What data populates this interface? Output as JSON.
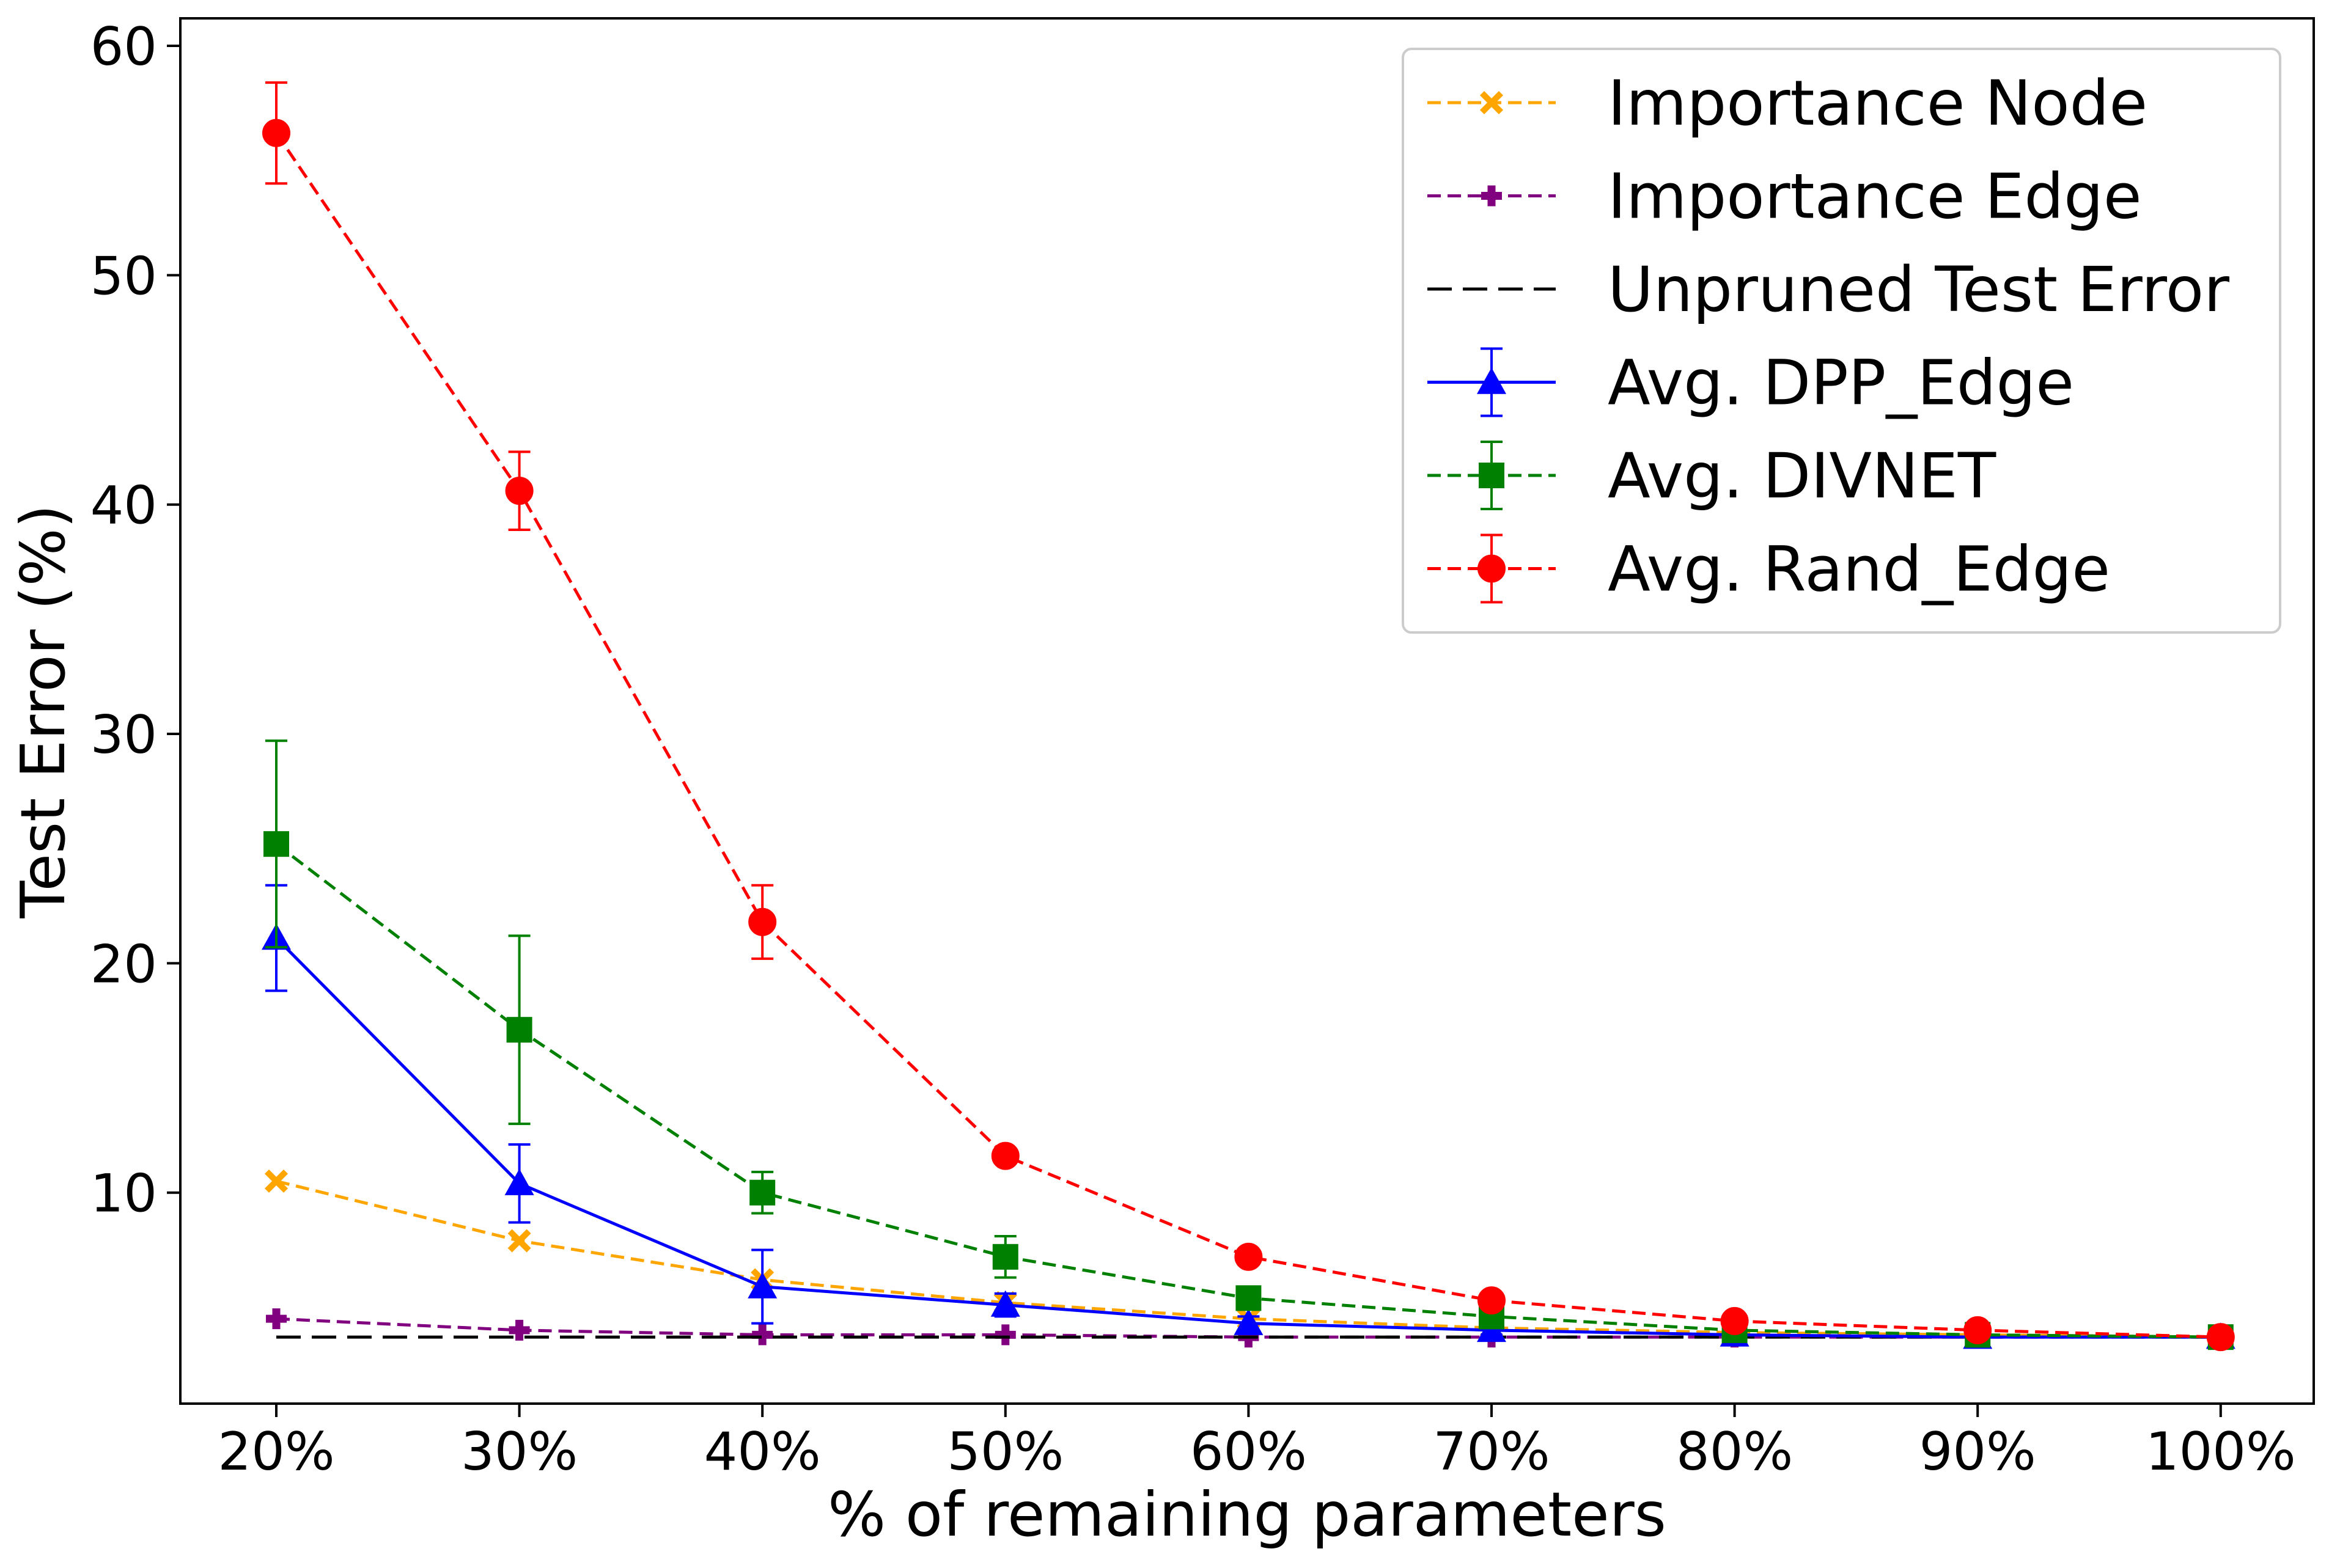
{
  "chart_data": {
    "type": "line",
    "title": "",
    "xlabel": "% of remaining parameters",
    "ylabel": "Test Error (%)",
    "categories": [
      "20%",
      "30%",
      "40%",
      "50%",
      "60%",
      "70%",
      "80%",
      "90%",
      "100%"
    ],
    "ylim": [
      0.8,
      61.2
    ],
    "y_ticks": [
      10,
      20,
      30,
      40,
      50,
      60
    ],
    "y_tick_labels": [
      "10",
      "20",
      "30",
      "40",
      "50",
      "60"
    ],
    "grid": false,
    "legend_position": "top-right",
    "series": [
      {
        "name": "Importance Node",
        "color": "#ffa500",
        "line_style": "dashed",
        "marker": "x-filled",
        "values": [
          10.5,
          7.9,
          6.2,
          5.2,
          4.5,
          4.1,
          3.9,
          3.8,
          3.7
        ]
      },
      {
        "name": "Importance Edge",
        "color": "#800080",
        "line_style": "dashed",
        "marker": "plus-filled",
        "values": [
          4.5,
          4.0,
          3.8,
          3.8,
          3.7,
          3.7,
          3.7,
          3.7,
          3.7
        ]
      },
      {
        "name": "Unpruned Test Error",
        "color": "#000000",
        "line_style": "dashed-long",
        "marker": "none",
        "values": [
          3.7,
          3.7,
          3.7,
          3.7,
          3.7,
          3.7,
          3.7,
          3.7,
          3.7
        ]
      },
      {
        "name": "Avg. DPP_Edge",
        "color": "#0000ff",
        "line_style": "solid",
        "marker": "triangle",
        "values": [
          21.1,
          10.4,
          5.9,
          5.1,
          4.3,
          4.0,
          3.8,
          3.7,
          3.7
        ],
        "error": [
          2.3,
          1.7,
          1.6,
          0.5,
          0.3,
          0.2,
          0.2,
          0.2,
          0.1
        ]
      },
      {
        "name": "Avg. DIVNET",
        "color": "#008000",
        "line_style": "dashed",
        "marker": "square",
        "values": [
          25.2,
          17.1,
          10.0,
          7.2,
          5.4,
          4.6,
          4.0,
          3.8,
          3.7
        ],
        "error": [
          4.5,
          4.1,
          0.9,
          0.9,
          0.3,
          0.2,
          0.2,
          0.1,
          0.1
        ]
      },
      {
        "name": "Avg. Rand_Edge",
        "color": "#ff0000",
        "line_style": "dashed",
        "marker": "circle",
        "values": [
          56.2,
          40.6,
          21.8,
          11.6,
          7.2,
          5.3,
          4.4,
          4.0,
          3.7
        ],
        "error": [
          2.2,
          1.7,
          1.6,
          0.3,
          0.2,
          0.2,
          0.2,
          0.2,
          0.1
        ]
      }
    ]
  }
}
